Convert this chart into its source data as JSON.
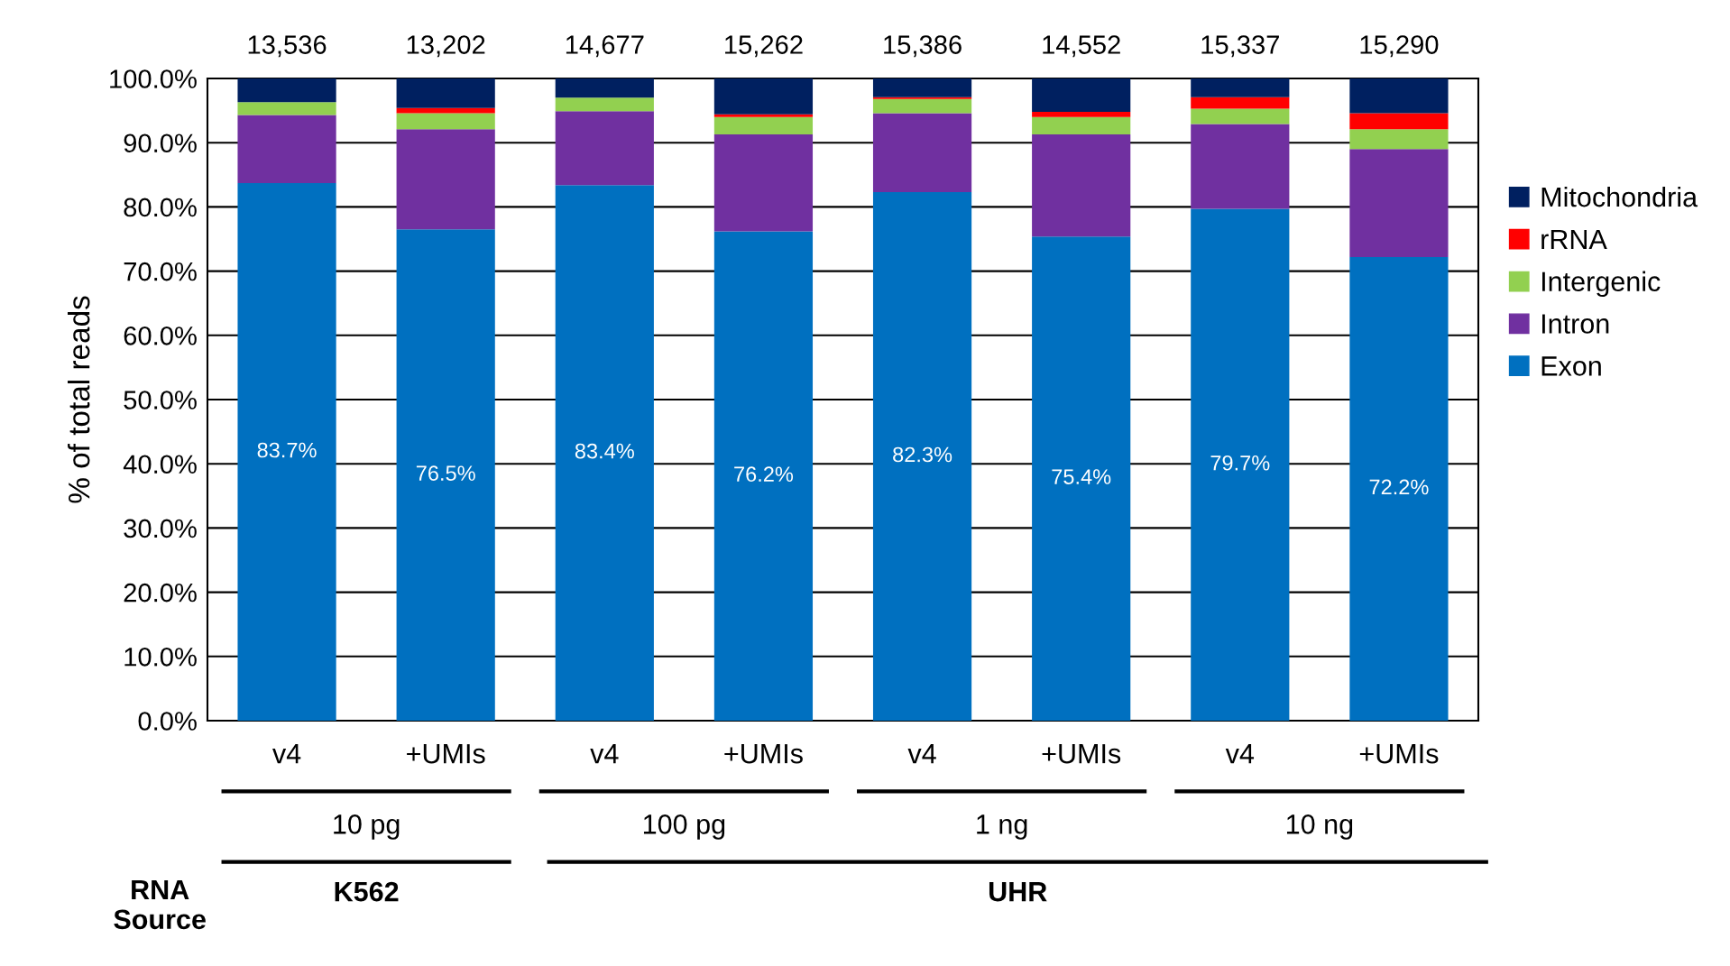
{
  "chart_data": {
    "type": "bar",
    "stacked": true,
    "ylabel": "% of total reads",
    "categories": [
      "v4",
      "+UMIs",
      "v4",
      "+UMIs",
      "v4",
      "+UMIs",
      "v4",
      "+UMIs"
    ],
    "series": [
      {
        "name": "Exon",
        "color": "#0070c0",
        "values": [
          83.7,
          76.5,
          83.4,
          76.2,
          82.3,
          75.4,
          79.7,
          72.2
        ],
        "value_labels": [
          "83.7%",
          "76.5%",
          "83.4%",
          "76.2%",
          "82.3%",
          "75.4%",
          "79.7%",
          "72.2%"
        ]
      },
      {
        "name": "Intron",
        "color": "#7030a0",
        "values": [
          10.6,
          15.6,
          11.5,
          15.1,
          12.3,
          15.9,
          13.2,
          16.8
        ]
      },
      {
        "name": "Intergenic",
        "color": "#92d050",
        "values": [
          2.0,
          2.5,
          2.1,
          2.7,
          2.2,
          2.7,
          2.4,
          3.1
        ]
      },
      {
        "name": "rRNA",
        "color": "#ff0000",
        "values": [
          null,
          0.8,
          null,
          0.4,
          0.3,
          0.8,
          1.8,
          2.5
        ]
      },
      {
        "name": "Mitochondria",
        "color": "#002060",
        "values": [
          3.7,
          4.6,
          3.0,
          5.6,
          2.9,
          5.2,
          2.9,
          5.4
        ]
      }
    ],
    "ylim": [
      0,
      100
    ],
    "yticks": [
      {
        "value": 0,
        "label": "0.0%"
      },
      {
        "value": 10,
        "label": "10.0%"
      },
      {
        "value": 20,
        "label": "20.0%"
      },
      {
        "value": 30,
        "label": "30.0%"
      },
      {
        "value": 40,
        "label": "40.0%"
      },
      {
        "value": 50,
        "label": "50.0%"
      },
      {
        "value": 60,
        "label": "60.0%"
      },
      {
        "value": 70,
        "label": "70.0%"
      },
      {
        "value": 80,
        "label": "80.0%"
      },
      {
        "value": 90,
        "label": "90.0%"
      },
      {
        "value": 100,
        "label": "100.0%"
      }
    ],
    "grid": "y",
    "legend": "right",
    "annotations": [
      "13,536",
      "13,202",
      "14,677",
      "15,262",
      "15,386",
      "14,552",
      "15,337",
      "15,290",
      "10 pg",
      "100 pg",
      "1 ng",
      "10 ng",
      "RNA\nSource",
      "K562",
      "UHR"
    ]
  }
}
